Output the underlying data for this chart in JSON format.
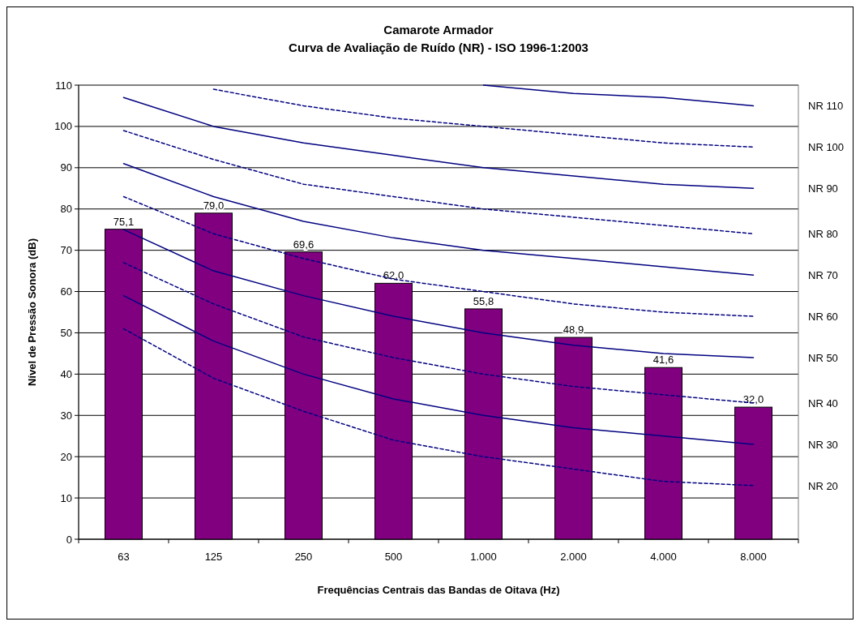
{
  "chart_data": {
    "type": "bar",
    "title": "Camarote Armador",
    "subtitle": "Curva de Avaliação de Ruído (NR) - ISO 1996-1:2003",
    "xlabel": "Frequências Centrais das Bandas de Oitava (Hz)",
    "ylabel": "Nível de Pressão Sonora (dB)",
    "categories": [
      "63",
      "125",
      "250",
      "500",
      "1.000",
      "2.000",
      "4.000",
      "8.000"
    ],
    "ylim": [
      0,
      110
    ],
    "yticks": [
      0,
      10,
      20,
      30,
      40,
      50,
      60,
      70,
      80,
      90,
      100,
      110
    ],
    "grid": "y",
    "series": [
      {
        "color": "#800080",
        "values": [
          75.1,
          79.0,
          69.6,
          62.0,
          55.8,
          48.9,
          41.6,
          32.0
        ],
        "value_labels": [
          "75,1",
          "79,0",
          "69,6",
          "62,0",
          "55,8",
          "48,9",
          "41,6",
          "32,0"
        ]
      },
      {
        "type": "line",
        "name": "NR 110",
        "color": "#000080",
        "line_style": "solid",
        "values": [
          null,
          null,
          null,
          null,
          110,
          108,
          107,
          105
        ]
      },
      {
        "type": "line",
        "name": "NR 100",
        "color": "#000080",
        "line_style": "dashed",
        "values": [
          null,
          109,
          105,
          102,
          100,
          98,
          96,
          95
        ]
      },
      {
        "type": "line",
        "name": "NR 90",
        "color": "#000080",
        "line_style": "solid",
        "values": [
          107,
          100,
          96,
          93,
          90,
          88,
          86,
          85
        ]
      },
      {
        "type": "line",
        "name": "NR 80",
        "color": "#000080",
        "line_style": "dashed",
        "values": [
          99,
          92,
          86,
          83,
          80,
          78,
          76,
          74
        ]
      },
      {
        "type": "line",
        "name": "NR 70",
        "color": "#000080",
        "line_style": "solid",
        "values": [
          91,
          83,
          77,
          73,
          70,
          68,
          66,
          64
        ]
      },
      {
        "type": "line",
        "name": "NR 60",
        "color": "#000080",
        "line_style": "dashed",
        "values": [
          83,
          74,
          68,
          63,
          60,
          57,
          55,
          54
        ]
      },
      {
        "type": "line",
        "name": "NR 50",
        "color": "#000080",
        "line_style": "solid",
        "values": [
          75,
          65,
          59,
          54,
          50,
          47,
          45,
          44
        ]
      },
      {
        "type": "line",
        "name": "NR 40",
        "color": "#000080",
        "line_style": "dashed",
        "values": [
          67,
          57,
          49,
          44,
          40,
          37,
          35,
          33
        ]
      },
      {
        "type": "line",
        "name": "NR 30",
        "color": "#000080",
        "line_style": "solid",
        "values": [
          59,
          48,
          40,
          34,
          30,
          27,
          25,
          23
        ]
      },
      {
        "type": "line",
        "name": "NR 20",
        "color": "#000080",
        "line_style": "dashed",
        "values": [
          51,
          39,
          31,
          24,
          20,
          17,
          14,
          13
        ]
      }
    ]
  }
}
